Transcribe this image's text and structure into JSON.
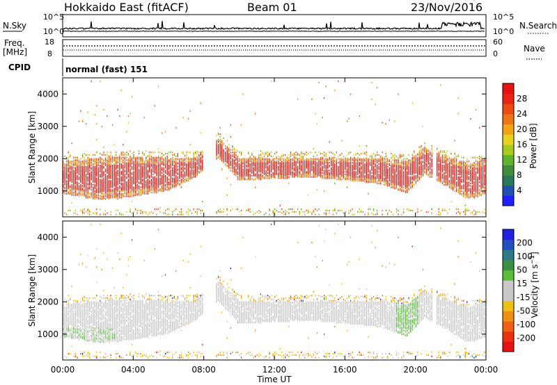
{
  "header": {
    "station": "Hokkaido East (fitACF)",
    "beam": "Beam 01",
    "date": "23/Nov/2016"
  },
  "top_panels": {
    "nsky_label": "N.Sky",
    "nsky_ticks": [
      "10^5",
      "10^0"
    ],
    "nsearch_label": "N.Search",
    "nsearch_ticks": [
      "10^5",
      "10^0"
    ],
    "freq_label_1": "Freq.",
    "freq_label_2": "[MHz]",
    "freq_ticks": [
      "18",
      "8"
    ],
    "nave_label": "Nave",
    "nave_ticks": [
      "60",
      "0"
    ],
    "cpid_label": "CPID",
    "cpid_value": "normal (fast) 151"
  },
  "axes": {
    "ylabel": "Slant Range [km]",
    "xlabel": "Time UT",
    "yticks": [
      "1000",
      "2000",
      "3000",
      "4000"
    ],
    "xticks": [
      "00:00",
      "04:00",
      "08:00",
      "12:00",
      "16:00",
      "20:00",
      "00:00"
    ]
  },
  "power_colorbar": {
    "label": "Power [dB]",
    "ticks": [
      "4",
      "8",
      "12",
      "16",
      "20",
      "24",
      "28"
    ],
    "colors": [
      "#1f1fff",
      "#2050b0",
      "#2a7a5a",
      "#3f8f3a",
      "#5fb52a",
      "#a8cc1e",
      "#e8d21a",
      "#f2a414",
      "#f07414",
      "#ee4a14",
      "#ec2414",
      "#e81010"
    ]
  },
  "velocity_colorbar": {
    "label": "Velocity [m s^-1]",
    "ticks": [
      "200",
      "100",
      "50",
      "15",
      "-15",
      "-50",
      "-100",
      "-200"
    ],
    "colors": [
      "#2020e0",
      "#2050c0",
      "#2e7a8a",
      "#3a8f44",
      "#58c038",
      "#c8c8c8",
      "#c8c8c8",
      "#f0c010",
      "#f09010",
      "#f06010",
      "#ec3010",
      "#e81010"
    ]
  },
  "chart_data": {
    "type": "heatmap",
    "title": "Hokkaido East (fitACF)  Beam 01  23/Nov/2016",
    "xlabel": "Time UT",
    "ylabel": "Slant Range [km]",
    "xlim": [
      0,
      24
    ],
    "ylim": [
      200,
      4500
    ],
    "panels": [
      {
        "name": "Power",
        "units": "dB",
        "range": [
          0,
          30
        ],
        "main_echo_band": [
          {
            "t": 0.0,
            "low": 900,
            "high": 1900
          },
          {
            "t": 2.0,
            "low": 700,
            "high": 2000
          },
          {
            "t": 4.0,
            "low": 800,
            "high": 2050
          },
          {
            "t": 6.0,
            "low": 1000,
            "high": 2000
          },
          {
            "t": 7.5,
            "low": 1400,
            "high": 2000
          },
          {
            "t": 8.8,
            "low": 2000,
            "high": 2600
          },
          {
            "t": 10.0,
            "low": 1300,
            "high": 2000
          },
          {
            "t": 14.0,
            "low": 1400,
            "high": 2000
          },
          {
            "t": 18.0,
            "low": 1200,
            "high": 2000
          },
          {
            "t": 19.5,
            "low": 900,
            "high": 1900
          },
          {
            "t": 20.5,
            "low": 1500,
            "high": 2300
          },
          {
            "t": 21.5,
            "low": 1200,
            "high": 2100
          },
          {
            "t": 23.0,
            "low": 700,
            "high": 1800
          },
          {
            "t": 24.0,
            "low": 900,
            "high": 2000
          }
        ]
      },
      {
        "name": "Velocity",
        "units": "m s^-1",
        "range": [
          -200,
          200
        ],
        "note": "mostly ground scatter (grey, |v| < 15)"
      }
    ]
  }
}
